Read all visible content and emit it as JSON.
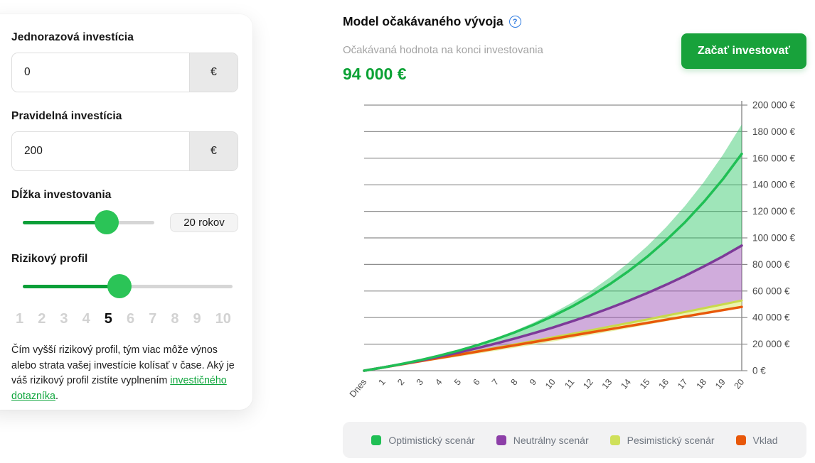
{
  "panel": {
    "fields": [
      {
        "label": "Jednorazová investícia",
        "value": "0",
        "suffix": "€"
      },
      {
        "label": "Pravidelná investícia",
        "value": "200",
        "suffix": "€"
      }
    ],
    "duration": {
      "label": "Dĺžka investovania",
      "badge": "20 rokov",
      "position_pct": 64
    },
    "risk": {
      "label": "Rizikový profil",
      "position_pct": 46,
      "levels": [
        "1",
        "2",
        "3",
        "4",
        "5",
        "6",
        "7",
        "8",
        "9",
        "10"
      ],
      "active_level": "5"
    },
    "note": {
      "text_before": "Čím vyšší rizikový profil, tým viac môže výnos alebo strata vašej investície kolísať v čase. Aký je váš rizikový profil zistíte vyplnením ",
      "link_text": "investičného dotazníka",
      "text_after": "."
    }
  },
  "header": {
    "title": "Model očakávaného vývoja",
    "info_icon": "?",
    "subtitle": "Očakávaná hodnota na konci investovania",
    "value": "94 000 €",
    "cta_label": "Začať investovať"
  },
  "colors": {
    "accent_green": "#18a23b",
    "value_green": "#0ba235",
    "slider_fill": "#0c9f38",
    "slider_thumb": "#2bc457",
    "grid": "#8e8e8e",
    "axis": "#8a8a8a",
    "optimistic": "#20bf55",
    "neutral": "#7d3a98",
    "pessimistic": "#c9d94a",
    "vklad": "#e8580a"
  },
  "chart_data": {
    "type": "area",
    "title": "Model očakávaného vývoja",
    "xlabel": "",
    "ylabel": "",
    "ylim": [
      0,
      200000
    ],
    "grid": true,
    "legend_position": "bottom",
    "categories": [
      "Dnes",
      "1",
      "2",
      "3",
      "4",
      "5",
      "6",
      "7",
      "8",
      "9",
      "10",
      "11",
      "12",
      "13",
      "14",
      "15",
      "16",
      "17",
      "18",
      "19",
      "20"
    ],
    "y_ticks": [
      {
        "value": 0,
        "label": "0 €"
      },
      {
        "value": 20000,
        "label": "20 000 €"
      },
      {
        "value": 40000,
        "label": "40 000 €"
      },
      {
        "value": 60000,
        "label": "60 000 €"
      },
      {
        "value": 80000,
        "label": "80 000 €"
      },
      {
        "value": 100000,
        "label": "100 000 €"
      },
      {
        "value": 120000,
        "label": "120 000 €"
      },
      {
        "value": 140000,
        "label": "140 000 €"
      },
      {
        "value": 160000,
        "label": "160 000 €"
      },
      {
        "value": 180000,
        "label": "180 000 €"
      },
      {
        "value": 200000,
        "label": "200 000 €"
      }
    ],
    "series": {
      "optimistic_upper": {
        "name": "Optimistický scenár – horná hranica",
        "values": [
          0,
          2400,
          5100,
          8150,
          11570,
          15430,
          19770,
          24660,
          30170,
          36370,
          43360,
          51220,
          60080,
          70040,
          81270,
          93910,
          108140,
          124170,
          142210,
          162530,
          185400
        ]
      },
      "optimistic": {
        "name": "Optimistický scenár",
        "values": [
          0,
          2400,
          5080,
          8060,
          11390,
          15100,
          19230,
          23840,
          28990,
          34720,
          41110,
          48240,
          56190,
          65050,
          74930,
          85950,
          98230,
          111930,
          127200,
          144250,
          163240
        ]
      },
      "neutral": {
        "name": "Neutrálny scenár",
        "values": [
          0,
          2400,
          4960,
          7690,
          10590,
          13690,
          17000,
          20520,
          24270,
          28270,
          32540,
          37090,
          41940,
          47100,
          52610,
          58480,
          64740,
          71420,
          78530,
          86110,
          94200
        ]
      },
      "pessimistic": {
        "name": "Pesimistický scenár",
        "values": [
          0,
          2400,
          4820,
          7270,
          9750,
          12240,
          14770,
          17310,
          19890,
          22480,
          25110,
          27760,
          30440,
          33140,
          35870,
          38630,
          41420,
          44230,
          47080,
          49950,
          52850
        ]
      },
      "vklad": {
        "name": "Vklad",
        "values": [
          0,
          2400,
          4800,
          7200,
          9600,
          12000,
          14400,
          16800,
          19200,
          21600,
          24000,
          26400,
          28800,
          31200,
          33600,
          36000,
          38400,
          40800,
          43200,
          45600,
          48000
        ]
      },
      "pessimistic_lower": {
        "name": "Pesimistický scenár – dolná hranica",
        "values": [
          0,
          2090,
          4180,
          6290,
          8420,
          10590,
          12780,
          15020,
          17300,
          19630,
          22000,
          24430,
          26900,
          29420,
          31980,
          34590,
          37220,
          39890,
          42580,
          45290,
          48000
        ]
      }
    },
    "areas": [
      {
        "top": "optimistic_upper",
        "bottom": "neutral",
        "color": "#2bc563",
        "opacity": 0.45
      },
      {
        "top": "neutral",
        "bottom": "pessimistic",
        "color": "#9b4fb5",
        "opacity": 0.47
      },
      {
        "top": "pessimistic",
        "bottom": "pessimistic_lower",
        "color": "#dbe96e",
        "opacity": 0.55
      }
    ],
    "lines": [
      {
        "series": "pessimistic",
        "color": "#c9d94a",
        "width": 3
      },
      {
        "series": "vklad",
        "color": "#e8580a",
        "width": 3.5
      },
      {
        "series": "neutral",
        "color": "#7d3a98",
        "width": 3.5
      },
      {
        "series": "optimistic",
        "color": "#20bf55",
        "width": 3.5
      }
    ],
    "legend": [
      {
        "label": "Optimistický scenár",
        "color": "#20bf55"
      },
      {
        "label": "Neutrálny scenár",
        "color": "#8d3fa8"
      },
      {
        "label": "Pesimistický scenár",
        "color": "#cfe05a"
      },
      {
        "label": "Vklad",
        "color": "#e8580a"
      }
    ]
  }
}
